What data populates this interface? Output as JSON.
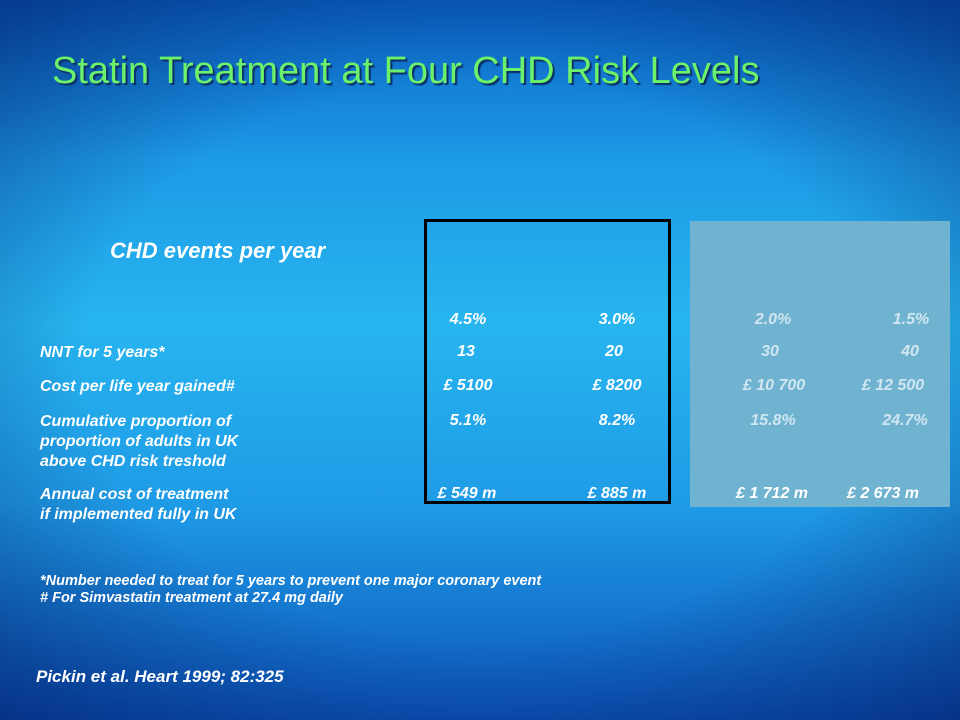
{
  "title": "Statin Treatment at Four CHD Risk Levels",
  "events_heading": "CHD events per year",
  "columns": [
    "4.5%",
    "3.0%",
    "2.0%",
    "1.5%"
  ],
  "rows": [
    {
      "label": "NNT for 5 years*",
      "values": [
        "13",
        "20",
        "30",
        "40"
      ]
    },
    {
      "label": "Cost per life year gained#",
      "values": [
        "£ 5100",
        "£ 8200",
        "£ 10 700",
        "£ 12 500"
      ]
    },
    {
      "label_lines": [
        "Cumulative proportion of",
        "proportion of adults in UK",
        "above CHD risk treshold"
      ],
      "values": [
        "5.1%",
        "8.2%",
        "15.8%",
        "24.7%"
      ]
    },
    {
      "label_lines": [
        "Annual cost of treatment",
        "if implemented fully in UK"
      ],
      "values": [
        "£ 549 m",
        "£ 885 m",
        "£ 1 712 m",
        "£  2 673 m"
      ]
    }
  ],
  "footnotes": [
    "*Number needed to treat for 5 years to prevent one major coronary event",
    "# For Simvastatin treatment at 27.4 mg daily"
  ],
  "citation": "Pickin et al. Heart 1999; 82:325",
  "colors": {
    "title": "#6cf26a",
    "text": "#ffffff",
    "highlight_panel": "#6fb3d0",
    "outline": "#000000"
  }
}
